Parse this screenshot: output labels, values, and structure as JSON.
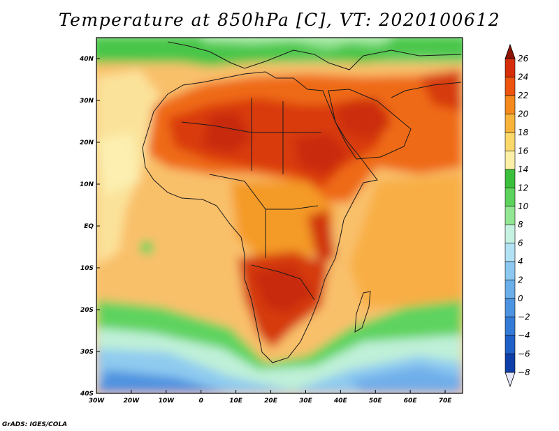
{
  "title": "Temperature at 850hPa [C], VT: 2020100612",
  "credit": "GrADS: IGES/COLA",
  "map": {
    "lon_range": [
      -30,
      75
    ],
    "lat_range": [
      -40,
      45
    ],
    "lon_ticks": [
      "30W",
      "20W",
      "10W",
      "0",
      "10E",
      "20E",
      "30E",
      "40E",
      "50E",
      "60E",
      "70E"
    ],
    "lat_ticks": [
      "40S",
      "30S",
      "20S",
      "10S",
      "EQ",
      "10N",
      "20N",
      "30N",
      "40N"
    ]
  },
  "colorbar": {
    "labels": [
      "26",
      "24",
      "22",
      "20",
      "18",
      "16",
      "14",
      "12",
      "10",
      "8",
      "6",
      "4",
      "2",
      "0",
      "−2",
      "−4",
      "−6",
      "−8"
    ],
    "colors": [
      "#8c1305",
      "#d62e0a",
      "#ec5410",
      "#f58a1c",
      "#f8b43a",
      "#fad86a",
      "#fcefa6",
      "#3cbf3c",
      "#5dd35d",
      "#93e693",
      "#c6f2e1",
      "#b3e2f5",
      "#8cc8f0",
      "#6aaeea",
      "#4c94e2",
      "#347bd8",
      "#1f5fc8",
      "#0e3ea8",
      "#0a1f78"
    ]
  }
}
